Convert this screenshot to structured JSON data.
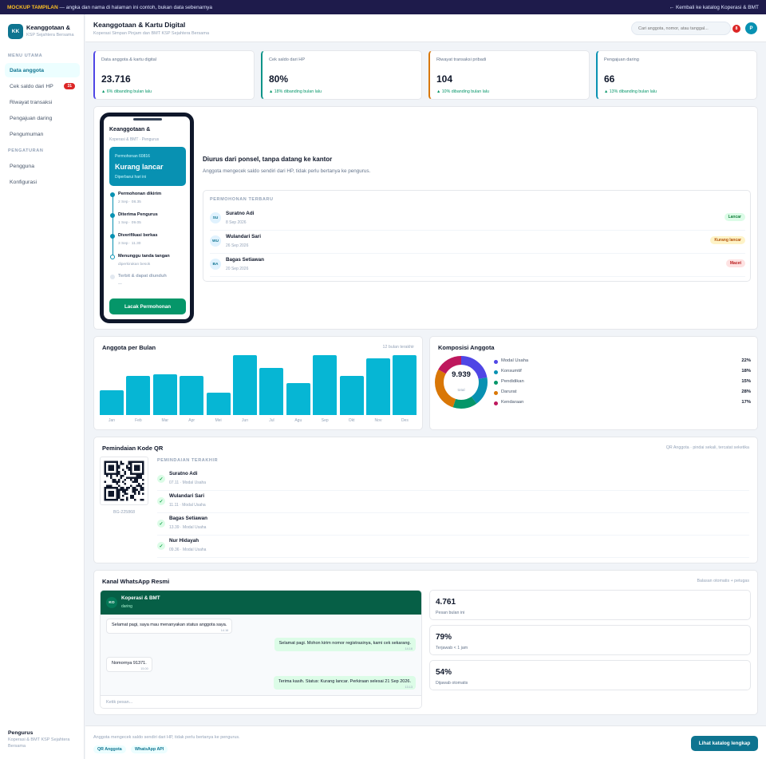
{
  "banner": {
    "tag": "MOCKUP TAMPILAN",
    "text": " — angka dan nama di halaman ini contoh, bukan data sebenarnya",
    "back": "← Kembali ke katalog Koperasi & BMT"
  },
  "sidebar": {
    "logo": "KK",
    "brand": "Keanggotaan &",
    "brand_sub": "KSP Sejahtera Bersama",
    "section_main": "MENU UTAMA",
    "items": [
      {
        "label": "Data anggota"
      },
      {
        "label": "Cek saldo dari HP",
        "badge": "31"
      },
      {
        "label": "Riwayat transaksi"
      },
      {
        "label": "Pengajuan daring"
      },
      {
        "label": "Pengumuman"
      }
    ],
    "section_settings": "PENGATURAN",
    "settings": [
      {
        "label": "Pengguna"
      },
      {
        "label": "Konfigurasi"
      }
    ],
    "foot_title": "Pengurus",
    "foot_sub": "Koperasi & BMT KSP Sejahtera Bersama"
  },
  "topbar": {
    "title": "Keanggotaan & Kartu Digital",
    "subtitle": "Koperasi Simpan Pinjam dan BMT KSP Sejahtera Bersama",
    "search_placeholder": "Cari anggota, nomor, atau tanggal...",
    "notif_count": "8",
    "avatar": "P"
  },
  "stats": [
    {
      "label": "Data anggota & kartu digital",
      "value": "23.716",
      "change": "▲ 6% dibanding bulan lalu",
      "color": "#4f46e5"
    },
    {
      "label": "Cek saldo dari HP",
      "value": "80%",
      "change": "▲ 18% dibanding bulan lalu",
      "color": "#0d9488"
    },
    {
      "label": "Riwayat transaksi pribadi",
      "value": "104",
      "change": "▲ 10% dibanding bulan lalu",
      "color": "#d97706"
    },
    {
      "label": "Pengajuan daring",
      "value": "66",
      "change": "▲ 13% dibanding bulan lalu",
      "color": "#0891b2"
    }
  ],
  "phone": {
    "title": "Keanggotaan &",
    "subtitle": "Koperasi & BMT · Pengurus",
    "card_id": "Permohonan 60816",
    "card_status": "Kurang lancar",
    "card_note": "Diperbarui hari ini",
    "steps": [
      {
        "title": "Permohonan dikirim",
        "time": "2 Sep · 08.35"
      },
      {
        "title": "Diterima Pengurus",
        "time": "1 Sep · 09.05"
      },
      {
        "title": "Diverifikasi berkas",
        "time": "3 Sep · 11.30"
      },
      {
        "title": "Menunggu tanda tangan",
        "time": "diperkirakan besok"
      },
      {
        "title": "Terbit & dapat diunduh",
        "time": "—"
      }
    ],
    "button": "Lacak Permohonan"
  },
  "hero": {
    "heading": "Diurus dari ponsel, tanpa datang ke kantor",
    "text": "Anggota mengecek saldo sendiri dari HP, tidak perlu bertanya ke pengurus.",
    "requests_header": "PERMOHONAN TERBARU",
    "requests": [
      {
        "initials": "SU",
        "name": "Suratno Adi",
        "date": "8 Sep 2026",
        "status": "Lancar",
        "bg": "#dcfce7",
        "fg": "#15803d"
      },
      {
        "initials": "WU",
        "name": "Wulandari Sari",
        "date": "26 Sep 2026",
        "status": "Kurang lancar",
        "bg": "#fef3c7",
        "fg": "#b45309"
      },
      {
        "initials": "BA",
        "name": "Bagas Setiawan",
        "date": "20 Sep 2026",
        "status": "Macet",
        "bg": "#fee2e2",
        "fg": "#b91c1c"
      }
    ]
  },
  "bar_card": {
    "title": "Anggota per Bulan",
    "note": "12 bulan terakhir"
  },
  "donut_card": {
    "title": "Komposisi Anggota",
    "center_value": "9.939",
    "center_label": "total"
  },
  "chart_data": [
    {
      "type": "bar",
      "categories": [
        "Jan",
        "Feb",
        "Mar",
        "Apr",
        "Mei",
        "Jun",
        "Jul",
        "Agu",
        "Sep",
        "Okt",
        "Nov",
        "Des"
      ],
      "values": [
        42,
        65,
        68,
        66,
        37,
        100,
        79,
        53,
        100,
        66,
        95,
        100
      ],
      "title": "Anggota per Bulan",
      "ylim": [
        0,
        100
      ]
    },
    {
      "type": "pie",
      "labels": [
        "Modal Usaha",
        "Konsumtif",
        "Pendidikan",
        "Darurat",
        "Kendaraan"
      ],
      "values": [
        22,
        18,
        15,
        28,
        17
      ],
      "value_labels": [
        "22%",
        "18%",
        "15%",
        "28%",
        "17%"
      ],
      "colors": [
        "#4f46e5",
        "#0891b2",
        "#059669",
        "#d97706",
        "#be185d"
      ],
      "title": "Komposisi Anggota"
    }
  ],
  "qr_card": {
    "title": "Pemindaian Kode QR",
    "note": "QR Anggota · pindai sekali, tercatat seketika",
    "id": "BG-225868",
    "header": "PEMINDAIAN TERAKHIR",
    "scans": [
      {
        "name": "Suratno Adi",
        "meta": "07.11 · Modal Usaha"
      },
      {
        "name": "Wulandari Sari",
        "meta": "11.11 · Modal Usaha"
      },
      {
        "name": "Bagas Setiawan",
        "meta": "13.39 · Modal Usaha"
      },
      {
        "name": "Nur Hidayah",
        "meta": "09.36 · Modal Usaha"
      }
    ]
  },
  "wa_card": {
    "title": "Kanal WhatsApp Resmi",
    "note": "Balasan otomatis + petugas",
    "chat_avatar": "KO",
    "chat_name": "Koperasi & BMT",
    "chat_status": "daring",
    "messages": [
      {
        "text": "Selamat pagi, saya mau menanyakan status anggota saya.",
        "time": "14.16"
      },
      {
        "text": "Selamat pagi. Mohon kirim nomor registrasinya, kami cek sekarang.",
        "time": "14.16"
      },
      {
        "text": "Nomornya 91371.",
        "time": "15.00"
      },
      {
        "text": "Terima kasih. Status: Kurang lancar. Perkiraan selesai 21 Sep 2026.",
        "time": "13.13"
      }
    ],
    "input_placeholder": "Ketik pesan...",
    "stats": [
      {
        "value": "4.761",
        "label": "Pesan bulan ini"
      },
      {
        "value": "79%",
        "label": "Terjawab < 1 jam"
      },
      {
        "value": "54%",
        "label": "Dijawab otomatis"
      }
    ]
  },
  "footer": {
    "text": "Anggota mengecek saldo sendiri dari HP, tidak perlu bertanya ke pengurus.",
    "tags": [
      "QR Anggota",
      "WhatsApp API"
    ],
    "button": "Lihat katalog lengkap"
  }
}
